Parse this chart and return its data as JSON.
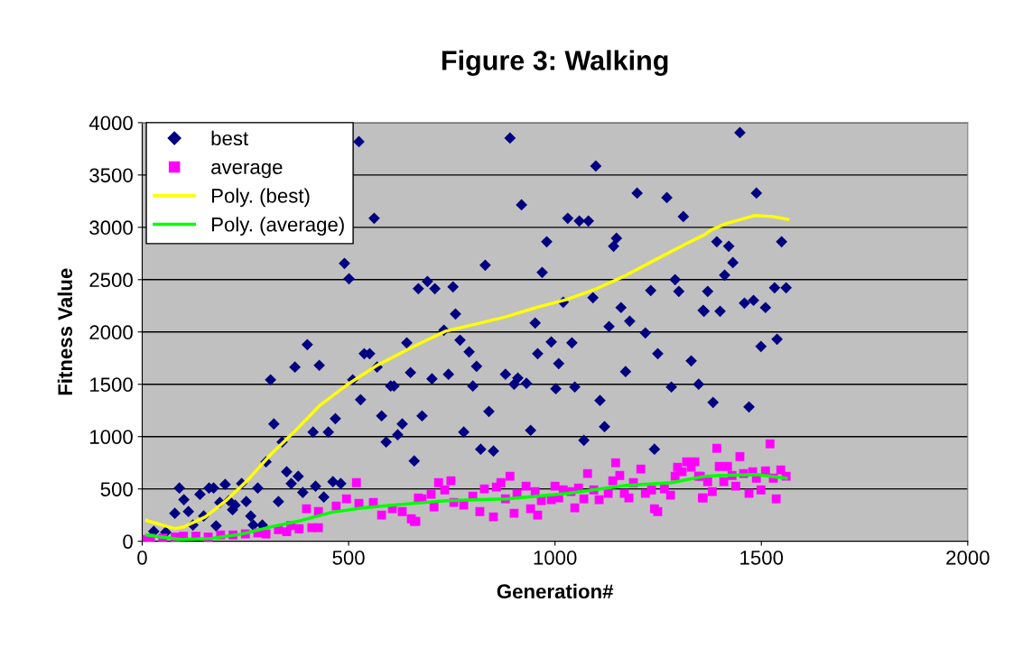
{
  "chart_data": {
    "type": "scatter",
    "title": "Figure 3: Walking",
    "xlabel": "Generation#",
    "ylabel": "Fitness Value",
    "xlim": [
      0,
      2000
    ],
    "xticks": [
      0,
      500,
      1000,
      1500,
      2000
    ],
    "ylim": [
      0,
      4000
    ],
    "yticks": [
      0,
      500,
      1000,
      1500,
      2000,
      2500,
      3000,
      3500,
      4000
    ],
    "grid": "y",
    "legend": "top left",
    "series": [
      {
        "name": "best",
        "marker": "diamond",
        "color": "#000080",
        "x": [
          525,
          562,
          490,
          501,
          669,
          400,
          641,
          370,
          429,
          538,
          551,
          569,
          650,
          311,
          510,
          529,
          602,
          610,
          580,
          678,
          630,
          319,
          619,
          468,
          414,
          451,
          339,
          591,
          659,
          300,
          350,
          378,
          361,
          389,
          420,
          440,
          462,
          481,
          330,
          90,
          101,
          79,
          112,
          140,
          162,
          173,
          201,
          241,
          280,
          123,
          149,
          188,
          210,
          225,
          219,
          252,
          263,
          179,
          269,
          291,
          28,
          57,
          891,
          1099,
          919,
          1199,
          1271,
          1311,
          1031,
          1059,
          1081,
          980,
          1149,
          1142,
          831,
          969,
          691,
          709,
          753,
          1291,
          1300,
          1232,
          1092,
          1020,
          1359,
          1160,
          759,
          1181,
          952,
          1131,
          731,
          1219,
          770,
          991,
          1041,
          792,
          958,
          1249,
          810,
          1009,
          1171,
          1330,
          880,
          910,
          742,
          702,
          801,
          901,
          931,
          1002,
          1048,
          1282,
          1348,
          1109,
          840,
          1120,
          779,
          941,
          1070,
          820,
          851,
          1241,
          1448,
          1488,
          1392,
          1421,
          1549,
          1431,
          1411,
          1370,
          1532,
          1560,
          1361,
          1400,
          1459,
          1481,
          1510,
          1538,
          1499,
          1383,
          1470
        ],
        "values": [
          3819,
          3086,
          2655,
          2508,
          2414,
          1879,
          1896,
          1664,
          1681,
          1793,
          1793,
          1664,
          1612,
          1543,
          1543,
          1353,
          1483,
          1483,
          1198,
          1198,
          1121,
          1121,
          1017,
          1172,
          1043,
          1043,
          948,
          948,
          767,
          759,
          664,
          621,
          552,
          466,
          526,
          422,
          569,
          552,
          379,
          509,
          397,
          267,
          284,
          448,
          509,
          509,
          543,
          552,
          509,
          155,
          241,
          371,
          388,
          345,
          302,
          379,
          241,
          147,
          155,
          155,
          95,
          86,
          3853,
          3586,
          3215,
          3327,
          3284,
          3103,
          3086,
          3060,
          3060,
          2862,
          2896,
          2819,
          2638,
          2569,
          2483,
          2414,
          2431,
          2500,
          2388,
          2396,
          2327,
          2284,
          2207,
          2233,
          2172,
          2103,
          2086,
          2052,
          2017,
          1991,
          1922,
          1905,
          1896,
          1810,
          1793,
          1793,
          1672,
          1698,
          1621,
          1724,
          1595,
          1560,
          1595,
          1552,
          1483,
          1500,
          1509,
          1457,
          1474,
          1474,
          1500,
          1345,
          1241,
          1095,
          1043,
          1060,
          965,
          879,
          862,
          879,
          3905,
          3327,
          2862,
          2819,
          2862,
          2663,
          2543,
          2388,
          2422,
          2422,
          2198,
          2198,
          2276,
          2302,
          2233,
          1931,
          1862,
          1327,
          1284
        ]
      },
      {
        "name": "average",
        "marker": "square",
        "color": "#ff00ff",
        "x": [
          11,
          20,
          50,
          80,
          100,
          130,
          160,
          190,
          220,
          250,
          280,
          300,
          330,
          350,
          360,
          380,
          519,
          398,
          427,
          411,
          427,
          470,
          495,
          525,
          560,
          580,
          606,
          630,
          652,
          659,
          669,
          663,
          678,
          700,
          707,
          718,
          733,
          748,
          755,
          779,
          801,
          818,
          829,
          851,
          858,
          869,
          880,
          891,
          901,
          908,
          930,
          941,
          952,
          958,
          967,
          991,
          1000,
          1009,
          1020,
          1039,
          1048,
          1057,
          1070,
          1079,
          1094,
          1107,
          1129,
          1140,
          1147,
          1157,
          1168,
          1179,
          1190,
          1208,
          1219,
          1234,
          1241,
          1249,
          1265,
          1280,
          1291,
          1297,
          1308,
          1319,
          1339,
          1330,
          1352,
          1357,
          1392,
          1448,
          1521,
          1398,
          1418,
          1429,
          1457,
          1479,
          1510,
          1547,
          1560,
          1348,
          1370,
          1409,
          1488,
          1529,
          1438,
          1381,
          1499,
          1470,
          1359,
          1536
        ],
        "values": [
          17,
          30,
          30,
          40,
          50,
          50,
          40,
          60,
          60,
          70,
          80,
          70,
          110,
          90,
          150,
          120,
          560,
          310,
          284,
          129,
          129,
          336,
          405,
          362,
          371,
          250,
          310,
          284,
          215,
          190,
          414,
          190,
          405,
          448,
          328,
          560,
          491,
          578,
          371,
          345,
          431,
          284,
          500,
          233,
          517,
          560,
          405,
          621,
          267,
          457,
          526,
          310,
          474,
          250,
          388,
          397,
          526,
          414,
          491,
          474,
          319,
          509,
          405,
          647,
          491,
          397,
          457,
          578,
          750,
          629,
          457,
          414,
          560,
          690,
          457,
          491,
          310,
          284,
          500,
          440,
          621,
          707,
          664,
          759,
          759,
          707,
          621,
          414,
          888,
          810,
          931,
          715,
          715,
          629,
          647,
          664,
          672,
          681,
          621,
          621,
          569,
          569,
          603,
          603,
          526,
          474,
          491,
          457,
          414,
          405
        ]
      },
      {
        "name": "Poly. (best)",
        "type": "line",
        "color": "#ffff00",
        "marker": "none",
        "line_style": "solid",
        "x": [
          11,
          79,
          101,
          153,
          203,
          254,
          313,
          372,
          429,
          495,
          569,
          641,
          685,
          735,
          810,
          882,
          954,
          1028,
          1101,
          1173,
          1247,
          1319,
          1363,
          1378,
          1413,
          1483,
          1527,
          1564
        ],
        "values": [
          198,
          121,
          137,
          233,
          388,
          578,
          836,
          1060,
          1293,
          1491,
          1681,
          1827,
          1914,
          2008,
          2077,
          2146,
          2233,
          2310,
          2414,
          2543,
          2698,
          2845,
          2931,
          2974,
          3034,
          3112,
          3103,
          3077
        ]
      },
      {
        "name": "Poly. (average)",
        "type": "line",
        "color": "#00ff00",
        "marker": "none",
        "line_style": "solid",
        "x": [
          11,
          94,
          166,
          241,
          313,
          385,
          459,
          532,
          604,
          685,
          735,
          882,
          1028,
          1173,
          1282,
          1363,
          1400,
          1488,
          1560
        ],
        "values": [
          60,
          17,
          26,
          69,
          138,
          198,
          276,
          319,
          345,
          371,
          388,
          405,
          457,
          534,
          560,
          621,
          629,
          638,
          603
        ]
      }
    ]
  }
}
